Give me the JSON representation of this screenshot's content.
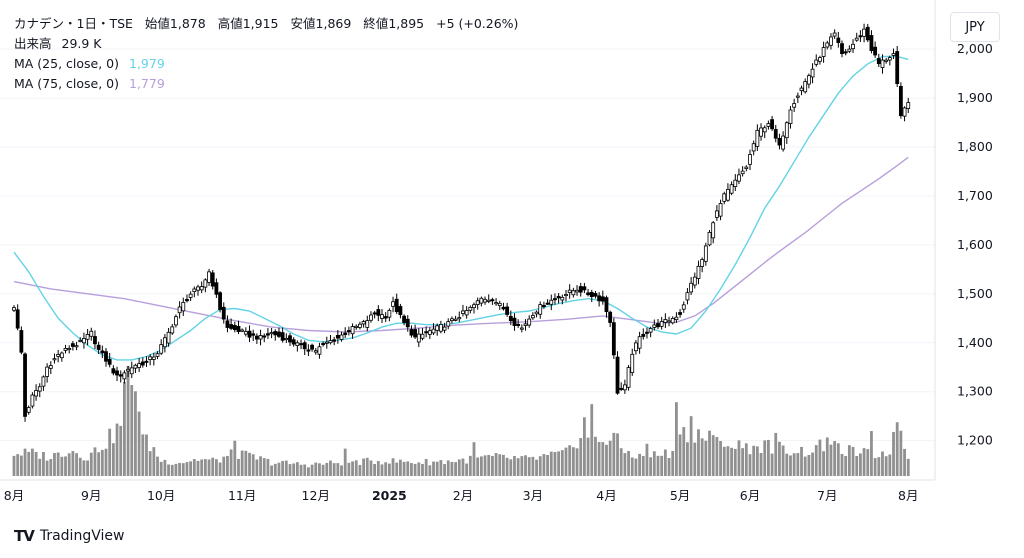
{
  "header": {
    "symbol": "カナデン・1日・TSE",
    "open_label": "始値",
    "open": "1,878",
    "high_label": "高値",
    "high": "1,915",
    "low_label": "安値",
    "low": "1,869",
    "close_label": "終値",
    "close": "1,895",
    "change": "+5 (+0.26%)",
    "volume_label": "出来高",
    "volume": "29.9 K",
    "ma25_label": "MA (25, close, 0)",
    "ma25_value": "1,979",
    "ma75_label": "MA (75, close, 0)",
    "ma75_value": "1,779"
  },
  "currency_button": "JPY",
  "footer": {
    "logo_glyph": "TV",
    "brand": "TradingView"
  },
  "colors": {
    "up_fill": "#ffffff",
    "down_fill": "#000000",
    "candle_border": "#000000",
    "volume": "#909090",
    "ma25": "#62d3e5",
    "ma75": "#b79fdc",
    "grid": "#f0f3fa",
    "text": "#131722"
  },
  "chart_data": {
    "type": "candlestick",
    "title": "カナデン・1日・TSE",
    "ylim": [
      1140,
      2080
    ],
    "y_ticks": [
      {
        "value": 1200,
        "label": "1,200"
      },
      {
        "value": 1300,
        "label": "1,300"
      },
      {
        "value": 1400,
        "label": "1,400"
      },
      {
        "value": 1500,
        "label": "1,500"
      },
      {
        "value": 1600,
        "label": "1,600"
      },
      {
        "value": 1700,
        "label": "1,700"
      },
      {
        "value": 1800,
        "label": "1,800"
      },
      {
        "value": 1900,
        "label": "1,900"
      },
      {
        "value": 2000,
        "label": "2,000"
      }
    ],
    "x_ticks": [
      {
        "index": 0,
        "label": "8月",
        "bold": false
      },
      {
        "index": 21,
        "label": "9月",
        "bold": false
      },
      {
        "index": 40,
        "label": "10月",
        "bold": false
      },
      {
        "index": 62,
        "label": "11月",
        "bold": false
      },
      {
        "index": 82,
        "label": "12月",
        "bold": false
      },
      {
        "index": 102,
        "label": "2025",
        "bold": true
      },
      {
        "index": 122,
        "label": "2月",
        "bold": false
      },
      {
        "index": 141,
        "label": "3月",
        "bold": false
      },
      {
        "index": 161,
        "label": "4月",
        "bold": false
      },
      {
        "index": 181,
        "label": "5月",
        "bold": false
      },
      {
        "index": 200,
        "label": "6月",
        "bold": false
      },
      {
        "index": 221,
        "label": "7月",
        "bold": false
      },
      {
        "index": 243,
        "label": "8月",
        "bold": false
      }
    ],
    "bars_total": 244,
    "close_anchors": [
      [
        0,
        1475
      ],
      [
        2,
        1380
      ],
      [
        3,
        1250
      ],
      [
        5,
        1290
      ],
      [
        7,
        1310
      ],
      [
        9,
        1350
      ],
      [
        12,
        1375
      ],
      [
        15,
        1390
      ],
      [
        18,
        1400
      ],
      [
        21,
        1420
      ],
      [
        23,
        1385
      ],
      [
        25,
        1365
      ],
      [
        28,
        1330
      ],
      [
        30,
        1340
      ],
      [
        33,
        1355
      ],
      [
        36,
        1360
      ],
      [
        39,
        1380
      ],
      [
        42,
        1420
      ],
      [
        45,
        1470
      ],
      [
        48,
        1500
      ],
      [
        51,
        1515
      ],
      [
        53,
        1545
      ],
      [
        56,
        1470
      ],
      [
        58,
        1430
      ],
      [
        61,
        1425
      ],
      [
        64,
        1415
      ],
      [
        67,
        1410
      ],
      [
        70,
        1420
      ],
      [
        73,
        1410
      ],
      [
        76,
        1400
      ],
      [
        79,
        1390
      ],
      [
        82,
        1385
      ],
      [
        85,
        1400
      ],
      [
        88,
        1410
      ],
      [
        91,
        1425
      ],
      [
        95,
        1440
      ],
      [
        98,
        1460
      ],
      [
        101,
        1455
      ],
      [
        103,
        1480
      ],
      [
        106,
        1440
      ],
      [
        109,
        1410
      ],
      [
        112,
        1420
      ],
      [
        115,
        1430
      ],
      [
        118,
        1440
      ],
      [
        121,
        1455
      ],
      [
        124,
        1470
      ],
      [
        127,
        1490
      ],
      [
        130,
        1490
      ],
      [
        133,
        1470
      ],
      [
        136,
        1440
      ],
      [
        138,
        1430
      ],
      [
        141,
        1460
      ],
      [
        144,
        1480
      ],
      [
        147,
        1490
      ],
      [
        150,
        1500
      ],
      [
        153,
        1510
      ],
      [
        156,
        1500
      ],
      [
        158,
        1495
      ],
      [
        160,
        1485
      ],
      [
        162,
        1445
      ],
      [
        164,
        1300
      ],
      [
        166,
        1310
      ],
      [
        168,
        1380
      ],
      [
        170,
        1410
      ],
      [
        173,
        1430
      ],
      [
        176,
        1440
      ],
      [
        179,
        1450
      ],
      [
        181,
        1460
      ],
      [
        184,
        1520
      ],
      [
        187,
        1570
      ],
      [
        190,
        1650
      ],
      [
        193,
        1700
      ],
      [
        196,
        1730
      ],
      [
        199,
        1760
      ],
      [
        202,
        1830
      ],
      [
        205,
        1850
      ],
      [
        208,
        1800
      ],
      [
        211,
        1880
      ],
      [
        214,
        1920
      ],
      [
        217,
        1960
      ],
      [
        220,
        2000
      ],
      [
        223,
        2030
      ],
      [
        225,
        1990
      ],
      [
        227,
        2000
      ],
      [
        229,
        2020
      ],
      [
        231,
        2040
      ],
      [
        233,
        2000
      ],
      [
        235,
        1970
      ],
      [
        237,
        1980
      ],
      [
        239,
        1990
      ],
      [
        241,
        1860
      ],
      [
        243,
        1895
      ]
    ],
    "volume_anchors": [
      [
        0,
        30
      ],
      [
        5,
        30
      ],
      [
        10,
        25
      ],
      [
        15,
        35
      ],
      [
        20,
        25
      ],
      [
        25,
        45
      ],
      [
        28,
        60
      ],
      [
        30,
        80
      ],
      [
        33,
        75
      ],
      [
        35,
        50
      ],
      [
        38,
        35
      ],
      [
        40,
        20
      ],
      [
        45,
        18
      ],
      [
        50,
        22
      ],
      [
        55,
        20
      ],
      [
        60,
        30
      ],
      [
        65,
        25
      ],
      [
        70,
        18
      ],
      [
        80,
        15
      ],
      [
        90,
        18
      ],
      [
        100,
        20
      ],
      [
        110,
        18
      ],
      [
        120,
        20
      ],
      [
        130,
        25
      ],
      [
        140,
        22
      ],
      [
        150,
        30
      ],
      [
        155,
        60
      ],
      [
        158,
        45
      ],
      [
        162,
        50
      ],
      [
        165,
        35
      ],
      [
        170,
        25
      ],
      [
        178,
        30
      ],
      [
        182,
        60
      ],
      [
        186,
        55
      ],
      [
        190,
        45
      ],
      [
        195,
        40
      ],
      [
        200,
        38
      ],
      [
        205,
        40
      ],
      [
        210,
        35
      ],
      [
        215,
        32
      ],
      [
        220,
        40
      ],
      [
        225,
        35
      ],
      [
        230,
        30
      ],
      [
        235,
        28
      ],
      [
        238,
        35
      ],
      [
        240,
        60
      ],
      [
        243,
        25
      ]
    ],
    "volume_spikes": [
      [
        30,
        110
      ],
      [
        31,
        140
      ],
      [
        32,
        120
      ],
      [
        33,
        135
      ],
      [
        34,
        90
      ],
      [
        60,
        50
      ],
      [
        90,
        30
      ],
      [
        125,
        40
      ],
      [
        155,
        70
      ],
      [
        157,
        85
      ],
      [
        163,
        55
      ],
      [
        164,
        45
      ],
      [
        172,
        45
      ],
      [
        180,
        85
      ],
      [
        181,
        70
      ],
      [
        184,
        75
      ],
      [
        185,
        45
      ],
      [
        189,
        55
      ],
      [
        193,
        50
      ],
      [
        207,
        48
      ],
      [
        221,
        60
      ],
      [
        233,
        50
      ],
      [
        240,
        85
      ],
      [
        241,
        60
      ]
    ],
    "volume_max": 145,
    "ma25": {
      "name": "MA (25, close, 0)",
      "last": 1979,
      "points": [
        [
          0,
          1585
        ],
        [
          4,
          1545
        ],
        [
          8,
          1495
        ],
        [
          12,
          1450
        ],
        [
          16,
          1420
        ],
        [
          20,
          1395
        ],
        [
          24,
          1375
        ],
        [
          28,
          1365
        ],
        [
          32,
          1365
        ],
        [
          36,
          1372
        ],
        [
          40,
          1385
        ],
        [
          44,
          1405
        ],
        [
          48,
          1425
        ],
        [
          52,
          1450
        ],
        [
          56,
          1468
        ],
        [
          60,
          1470
        ],
        [
          64,
          1465
        ],
        [
          68,
          1450
        ],
        [
          72,
          1435
        ],
        [
          76,
          1418
        ],
        [
          80,
          1405
        ],
        [
          84,
          1402
        ],
        [
          88,
          1405
        ],
        [
          92,
          1410
        ],
        [
          96,
          1420
        ],
        [
          100,
          1432
        ],
        [
          104,
          1440
        ],
        [
          108,
          1440
        ],
        [
          112,
          1437
        ],
        [
          116,
          1437
        ],
        [
          120,
          1440
        ],
        [
          124,
          1446
        ],
        [
          128,
          1452
        ],
        [
          132,
          1458
        ],
        [
          136,
          1462
        ],
        [
          140,
          1465
        ],
        [
          144,
          1472
        ],
        [
          148,
          1480
        ],
        [
          152,
          1486
        ],
        [
          156,
          1490
        ],
        [
          160,
          1486
        ],
        [
          164,
          1470
        ],
        [
          168,
          1450
        ],
        [
          172,
          1432
        ],
        [
          176,
          1422
        ],
        [
          180,
          1418
        ],
        [
          184,
          1430
        ],
        [
          188,
          1465
        ],
        [
          192,
          1510
        ],
        [
          196,
          1560
        ],
        [
          200,
          1615
        ],
        [
          204,
          1675
        ],
        [
          208,
          1720
        ],
        [
          212,
          1770
        ],
        [
          216,
          1820
        ],
        [
          220,
          1865
        ],
        [
          224,
          1910
        ],
        [
          228,
          1945
        ],
        [
          232,
          1970
        ],
        [
          236,
          1985
        ],
        [
          240,
          1985
        ],
        [
          243,
          1979
        ]
      ]
    },
    "ma75": {
      "name": "MA (75, close, 0)",
      "last": 1779,
      "points": [
        [
          0,
          1525
        ],
        [
          10,
          1510
        ],
        [
          20,
          1500
        ],
        [
          30,
          1490
        ],
        [
          40,
          1475
        ],
        [
          50,
          1460
        ],
        [
          60,
          1445
        ],
        [
          70,
          1432
        ],
        [
          80,
          1425
        ],
        [
          90,
          1422
        ],
        [
          100,
          1425
        ],
        [
          110,
          1430
        ],
        [
          120,
          1436
        ],
        [
          130,
          1440
        ],
        [
          140,
          1443
        ],
        [
          150,
          1448
        ],
        [
          160,
          1455
        ],
        [
          165,
          1450
        ],
        [
          170,
          1445
        ],
        [
          175,
          1440
        ],
        [
          180,
          1442
        ],
        [
          185,
          1455
        ],
        [
          190,
          1480
        ],
        [
          195,
          1510
        ],
        [
          200,
          1540
        ],
        [
          205,
          1570
        ],
        [
          210,
          1598
        ],
        [
          215,
          1625
        ],
        [
          220,
          1655
        ],
        [
          225,
          1685
        ],
        [
          230,
          1710
        ],
        [
          235,
          1735
        ],
        [
          240,
          1762
        ],
        [
          243,
          1779
        ]
      ]
    }
  }
}
